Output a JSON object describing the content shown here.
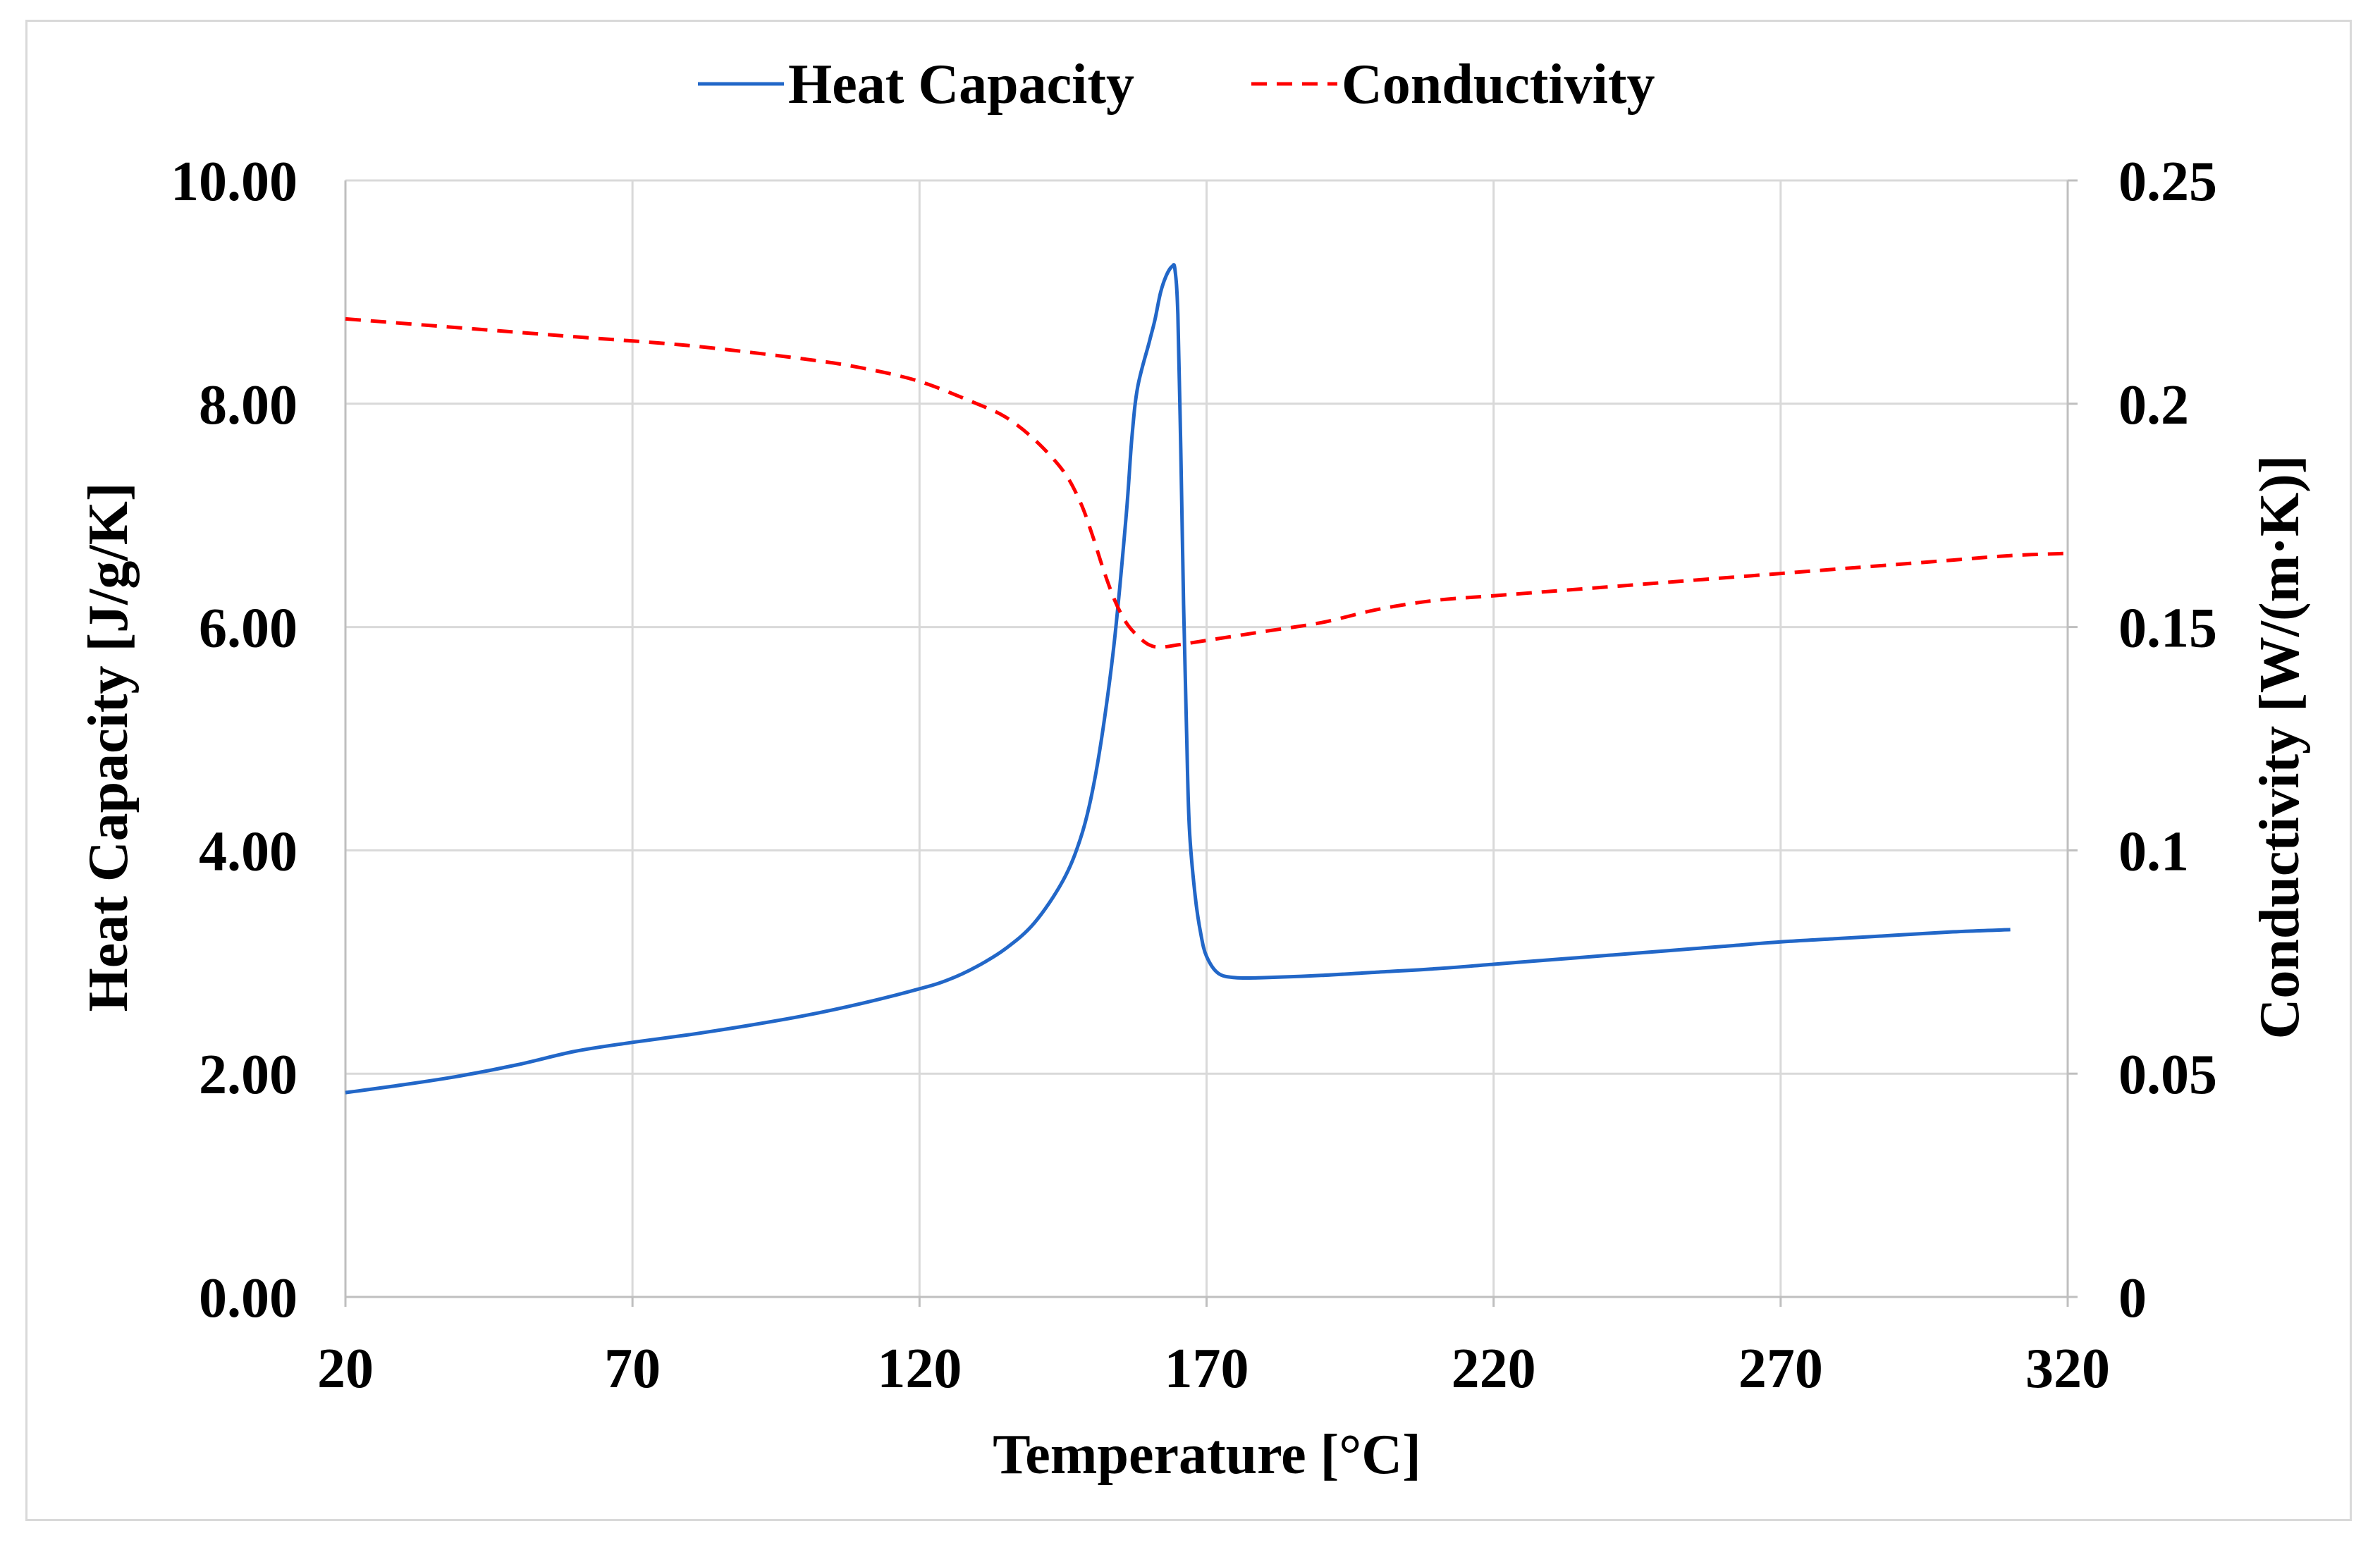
{
  "chart_data": {
    "type": "line",
    "title": "",
    "xlabel": "Temperature [°C]",
    "ylabel": "Heat Capacity  [J/g/K]",
    "y2label": "Conductivity [W/(m·K)]",
    "xlim": [
      20,
      320
    ],
    "ylim": [
      0,
      10
    ],
    "y2lim": [
      0,
      0.25
    ],
    "x_ticks": [
      "20",
      "70",
      "120",
      "170",
      "220",
      "270",
      "320"
    ],
    "y_ticks": [
      "0.00",
      "2.00",
      "4.00",
      "6.00",
      "8.00",
      "10.00"
    ],
    "y2_ticks": [
      "0",
      "0.05",
      "0.1",
      "0.15",
      "0.2",
      "0.25"
    ],
    "grid": true,
    "legend_position": "top",
    "series": [
      {
        "name": "Heat Capacity",
        "axis": "left",
        "color": "#2267c8",
        "style": "solid",
        "points": [
          [
            20,
            1.83
          ],
          [
            30,
            1.9
          ],
          [
            40,
            1.98
          ],
          [
            50,
            2.08
          ],
          [
            60,
            2.2
          ],
          [
            70,
            2.28
          ],
          [
            80,
            2.35
          ],
          [
            90,
            2.43
          ],
          [
            100,
            2.52
          ],
          [
            110,
            2.63
          ],
          [
            120,
            2.76
          ],
          [
            125,
            2.84
          ],
          [
            130,
            2.96
          ],
          [
            135,
            3.12
          ],
          [
            140,
            3.35
          ],
          [
            145,
            3.73
          ],
          [
            148,
            4.1
          ],
          [
            150,
            4.5
          ],
          [
            152,
            5.1
          ],
          [
            154,
            5.9
          ],
          [
            156,
            7.0
          ],
          [
            157,
            7.7
          ],
          [
            158,
            8.15
          ],
          [
            160,
            8.55
          ],
          [
            161,
            8.75
          ],
          [
            162,
            9.0
          ],
          [
            163,
            9.15
          ],
          [
            164,
            9.23
          ],
          [
            164.5,
            9.2
          ],
          [
            165,
            8.8
          ],
          [
            165.5,
            7.6
          ],
          [
            166,
            6.2
          ],
          [
            166.5,
            5.1
          ],
          [
            167,
            4.2
          ],
          [
            168,
            3.6
          ],
          [
            169,
            3.25
          ],
          [
            170,
            3.05
          ],
          [
            172,
            2.9
          ],
          [
            175,
            2.86
          ],
          [
            180,
            2.86
          ],
          [
            190,
            2.88
          ],
          [
            200,
            2.91
          ],
          [
            210,
            2.94
          ],
          [
            220,
            2.98
          ],
          [
            230,
            3.02
          ],
          [
            240,
            3.06
          ],
          [
            250,
            3.1
          ],
          [
            260,
            3.14
          ],
          [
            270,
            3.18
          ],
          [
            280,
            3.21
          ],
          [
            290,
            3.24
          ],
          [
            300,
            3.27
          ],
          [
            310,
            3.29
          ]
        ]
      },
      {
        "name": "Conductivity",
        "axis": "right",
        "color": "#ff0000",
        "style": "dashed",
        "points": [
          [
            20,
            0.219
          ],
          [
            40,
            0.217
          ],
          [
            60,
            0.215
          ],
          [
            80,
            0.213
          ],
          [
            100,
            0.21
          ],
          [
            110,
            0.208
          ],
          [
            120,
            0.205
          ],
          [
            130,
            0.2
          ],
          [
            135,
            0.197
          ],
          [
            140,
            0.192
          ],
          [
            145,
            0.185
          ],
          [
            148,
            0.178
          ],
          [
            150,
            0.171
          ],
          [
            152,
            0.163
          ],
          [
            154,
            0.156
          ],
          [
            156,
            0.151
          ],
          [
            158,
            0.148
          ],
          [
            160,
            0.146
          ],
          [
            162,
            0.1455
          ],
          [
            165,
            0.146
          ],
          [
            170,
            0.147
          ],
          [
            180,
            0.149
          ],
          [
            190,
            0.151
          ],
          [
            200,
            0.154
          ],
          [
            210,
            0.156
          ],
          [
            220,
            0.157
          ],
          [
            230,
            0.158
          ],
          [
            240,
            0.159
          ],
          [
            250,
            0.16
          ],
          [
            260,
            0.161
          ],
          [
            270,
            0.162
          ],
          [
            280,
            0.163
          ],
          [
            290,
            0.164
          ],
          [
            300,
            0.165
          ],
          [
            310,
            0.166
          ],
          [
            320,
            0.1665
          ]
        ]
      }
    ]
  }
}
